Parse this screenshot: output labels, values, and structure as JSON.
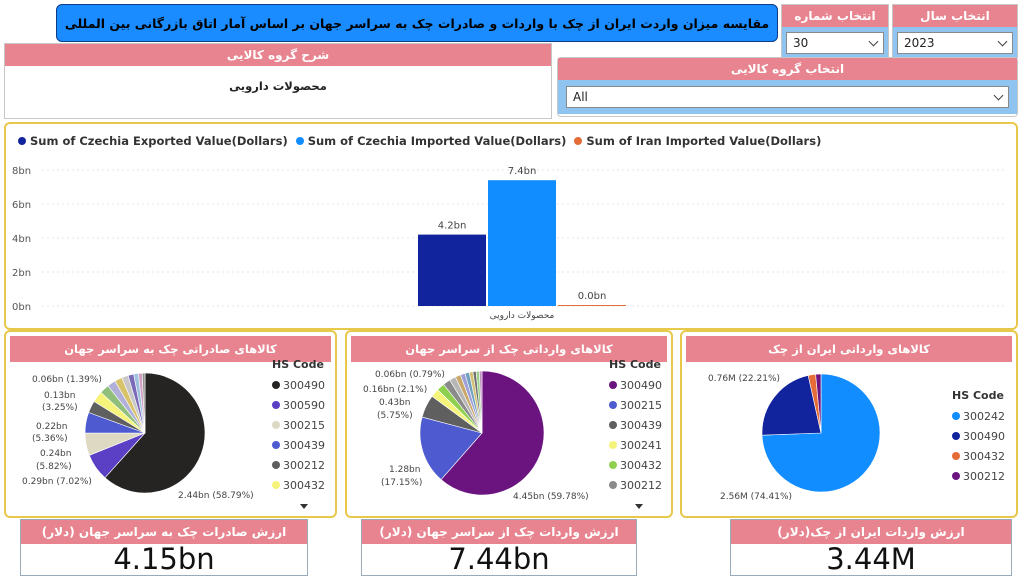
{
  "title": "مقایسه میزان واردت ایران از چک با واردات و صادرات چک به سراسر جهان بر اساس آمار اتاق بازرگانی بین المللی",
  "slicers": {
    "year": {
      "label": "انتخاب سال",
      "value": "2023"
    },
    "chapter": {
      "label": "انتخاب شماره فصل",
      "value": "30"
    },
    "group": {
      "label": "انتخاب گروه کالایی",
      "value": "All"
    }
  },
  "description": {
    "label": "شرح گروه کالایی",
    "text": "محصولات دارویی"
  },
  "colors": {
    "exported": "#12239e",
    "imported": "#118dff",
    "iran": "#e66c37",
    "accent": "#e7848f",
    "panel_border": "#e8c84a"
  },
  "chart_data": [
    {
      "type": "bar",
      "categories": [
        "محصولات دارویی"
      ],
      "series": [
        {
          "name": "Sum of Czechia Exported Value(Dollars)",
          "values": [
            4.2
          ],
          "label": "4.2bn",
          "color": "#12239e"
        },
        {
          "name": "Sum of Czechia Imported Value(Dollars)",
          "values": [
            7.4
          ],
          "label": "7.4bn",
          "color": "#118dff"
        },
        {
          "name": "Sum of Iran Imported Value(Dollars)",
          "values": [
            0.0
          ],
          "label": "0.0bn",
          "color": "#e66c37"
        }
      ],
      "yticks": [
        "8bn",
        "6bn",
        "4bn",
        "2bn",
        "0bn"
      ],
      "ylim": [
        0,
        8
      ],
      "unit": "bn USD"
    },
    {
      "type": "pie",
      "title": "کالاهای صادراتی چک به سراسر جهان",
      "legend_title": "HS Code",
      "legend": [
        {
          "code": "300490",
          "color": "#252423"
        },
        {
          "code": "300590",
          "color": "#5b3fc4"
        },
        {
          "code": "300215",
          "color": "#ddd9c3"
        },
        {
          "code": "300439",
          "color": "#4e5bd0"
        },
        {
          "code": "300212",
          "color": "#5f5f5f"
        },
        {
          "code": "300432",
          "color": "#f5f37a"
        }
      ],
      "labels": [
        "0.06bn (1.39%)",
        "0.13bn",
        "(3.25%)",
        "0.22bn",
        "(5.36%)",
        "0.24bn",
        "(5.82%)",
        "0.29bn (7.02%)",
        "2.44bn (58.79%)"
      ],
      "slices": [
        {
          "code": "300490",
          "value": 2.44,
          "color": "#252423"
        },
        {
          "code": "300590",
          "value": 0.29,
          "color": "#5b3fc4"
        },
        {
          "code": "300215",
          "value": 0.24,
          "color": "#ddd9c3"
        },
        {
          "code": "300439",
          "value": 0.22,
          "color": "#4e5bd0"
        },
        {
          "code": "300212",
          "value": 0.13,
          "color": "#5f5f5f"
        },
        {
          "code": "300432",
          "value": 0.12,
          "color": "#f5f37a"
        },
        {
          "code": "other-a",
          "value": 0.1,
          "color": "#8fbf7a"
        },
        {
          "code": "other-b",
          "value": 0.09,
          "color": "#b0b0d8"
        },
        {
          "code": "other-c",
          "value": 0.08,
          "color": "#d8c26a"
        },
        {
          "code": "other-d",
          "value": 0.07,
          "color": "#c8c8c8"
        },
        {
          "code": "other-e",
          "value": 0.06,
          "color": "#7a6ab8"
        },
        {
          "code": "other-f",
          "value": 0.05,
          "color": "#a0c0e0"
        },
        {
          "code": "other-g",
          "value": 0.04,
          "color": "#d0a0c0"
        },
        {
          "code": "other-h",
          "value": 0.03,
          "color": "#909090"
        }
      ]
    },
    {
      "type": "pie",
      "title": "کالاهای وارداتی چک از سراسر جهان",
      "legend_title": "HS Code",
      "legend": [
        {
          "code": "300490",
          "color": "#6b1480"
        },
        {
          "code": "300215",
          "color": "#4e5bd0"
        },
        {
          "code": "300439",
          "color": "#5f5f5f"
        },
        {
          "code": "300241",
          "color": "#f5f37a"
        },
        {
          "code": "300432",
          "color": "#8fd14f"
        },
        {
          "code": "300212",
          "color": "#8a8a8a"
        }
      ],
      "labels": [
        "0.06bn (0.79%)",
        "0.16bn (2.1%)",
        "0.43bn",
        "(5.75%)",
        "1.28bn",
        "(17.15%)",
        "4.45bn (59.78%)"
      ],
      "slices": [
        {
          "code": "300490",
          "value": 4.45,
          "color": "#6b1480"
        },
        {
          "code": "300215",
          "value": 1.28,
          "color": "#4e5bd0"
        },
        {
          "code": "300439",
          "value": 0.43,
          "color": "#5f5f5f"
        },
        {
          "code": "300241",
          "value": 0.16,
          "color": "#f5f37a"
        },
        {
          "code": "300432",
          "value": 0.15,
          "color": "#8fd14f"
        },
        {
          "code": "300212",
          "value": 0.14,
          "color": "#8a8a8a"
        },
        {
          "code": "other-a",
          "value": 0.12,
          "color": "#b7b7b7"
        },
        {
          "code": "other-b",
          "value": 0.1,
          "color": "#c9a86a"
        },
        {
          "code": "other-c",
          "value": 0.09,
          "color": "#a0a0d8"
        },
        {
          "code": "other-d",
          "value": 0.08,
          "color": "#6fa0c0"
        },
        {
          "code": "other-e",
          "value": 0.07,
          "color": "#d0c070"
        },
        {
          "code": "other-f",
          "value": 0.06,
          "color": "#707070"
        },
        {
          "code": "other-g",
          "value": 0.06,
          "color": "#9ad08a"
        },
        {
          "code": "other-h",
          "value": 0.05,
          "color": "#c090c0"
        }
      ]
    },
    {
      "type": "pie",
      "title": "کالاهای وارداتی ایران از چک",
      "legend_title": "HS Code",
      "legend": [
        {
          "code": "300242",
          "color": "#118dff"
        },
        {
          "code": "300490",
          "color": "#12239e"
        },
        {
          "code": "300432",
          "color": "#e66c37"
        },
        {
          "code": "300212",
          "color": "#6b1480"
        }
      ],
      "labels": [
        "0.76M (22.21%)",
        "2.56M (74.41%)"
      ],
      "slices": [
        {
          "code": "300242",
          "value": 2.56,
          "color": "#118dff"
        },
        {
          "code": "300490",
          "value": 0.76,
          "color": "#12239e"
        },
        {
          "code": "300432",
          "value": 0.07,
          "color": "#e66c37"
        },
        {
          "code": "300212",
          "value": 0.05,
          "color": "#6b1480"
        }
      ]
    }
  ],
  "kpis": [
    {
      "label": "ارزش صادرات چک به سراسر جهان (دلار)",
      "value": "4.15bn"
    },
    {
      "label": "ارزش واردات چک از سراسر جهان (دلار)",
      "value": "7.44bn"
    },
    {
      "label": "ارزش واردات ایران از چک(دلار)",
      "value": "3.44M"
    }
  ]
}
